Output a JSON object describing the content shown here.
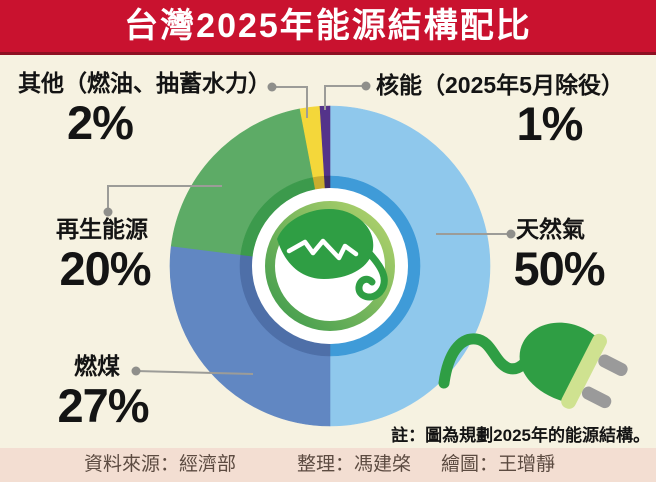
{
  "header": {
    "title": "台灣2025年能源結構配比"
  },
  "chart_data": {
    "type": "pie",
    "subtype": "donut",
    "title": "台灣2025年能源結構配比",
    "unit": "%",
    "start_angle_deg": 0,
    "direction": "clockwise-from-top",
    "slices": [
      {
        "label": "天然氣",
        "value": 50,
        "display": "50%",
        "color": "#8fc8ec",
        "rim_color": "#3f9bd8"
      },
      {
        "label": "燃煤",
        "value": 27,
        "display": "27%",
        "color": "#6187c2",
        "rim_color": "#4e6fa8"
      },
      {
        "label": "再生能源",
        "value": 20,
        "display": "20%",
        "color": "#5dab66",
        "rim_color": "#3c9a4c"
      },
      {
        "label": "其他（燃油、抽蓄水力）",
        "value": 2,
        "display": "2%",
        "color": "#f4d73a",
        "rim_color": "#c9ad2e"
      },
      {
        "label": "核能（2025年5月除役）",
        "value": 1,
        "display": "1%",
        "color": "#54338a",
        "rim_color": "#3f2a68"
      }
    ],
    "note": "註：圖為規劃2025年的能源結構。",
    "center_icon": "leaf-energy-logo",
    "decoration_icon": "power-plug",
    "legend": "callout-labels"
  },
  "footer": {
    "source": "資料來源：經濟部",
    "editor": "整理：馮建棨",
    "graphics": "繪圖：王璔靜"
  },
  "colors": {
    "banner_red": "#c9122f",
    "banner_edge": "#8e1022",
    "background": "#f6f2e1",
    "footer_bg": "#f3ded2",
    "footer_text": "#5c4b41",
    "callout_gray": "#9c9c98",
    "leaf_green": "#2f9e44",
    "ring_gradient_light": "#b5d46e",
    "ring_gradient_dark": "#3c9a4c",
    "plug_band": "#cfe290",
    "plug_prong_gray": "#9a9a9a"
  }
}
